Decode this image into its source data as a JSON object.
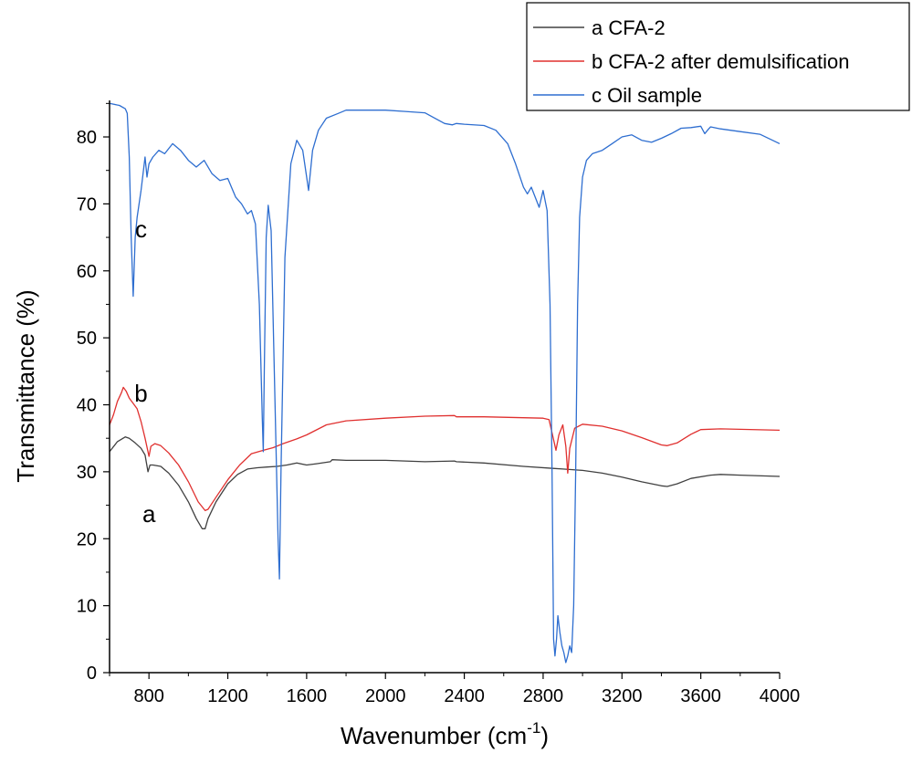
{
  "chart_data": {
    "type": "line",
    "xlabel": "Wavenumber (cm",
    "xlabel_sup": "-1",
    "xlabel_close": ")",
    "ylabel": "Transmittance (%)",
    "xlim": [
      600,
      4000
    ],
    "ylim": [
      0,
      86
    ],
    "x_ticks": [
      800,
      1200,
      1600,
      2000,
      2400,
      2800,
      3200,
      3600,
      4000
    ],
    "x_tick_labels": [
      "800",
      "1200",
      "1600",
      "2000",
      "2400",
      "2800",
      "3200",
      "3600",
      "4000"
    ],
    "y_ticks": [
      0,
      10,
      20,
      30,
      40,
      50,
      60,
      70,
      80
    ],
    "y_tick_labels": [
      "0",
      "10",
      "20",
      "30",
      "40",
      "50",
      "60",
      "70",
      "80"
    ],
    "grid": false,
    "legend_position": "top-right",
    "series": [
      {
        "name": "a CFA-2",
        "tag": "a",
        "color": "#404040",
        "x": [
          600,
          640,
          680,
          700,
          730,
          760,
          780,
          795,
          805,
          820,
          860,
          900,
          950,
          1000,
          1040,
          1070,
          1085,
          1100,
          1140,
          1200,
          1250,
          1300,
          1350,
          1400,
          1450,
          1500,
          1550,
          1600,
          1650,
          1720,
          1730,
          1800,
          2000,
          2200,
          2350,
          2360,
          2500,
          2700,
          2850,
          2900,
          3000,
          3100,
          3200,
          3300,
          3400,
          3430,
          3480,
          3550,
          3650,
          3700,
          3800,
          4000
        ],
        "y": [
          33,
          34.5,
          35.2,
          35,
          34.3,
          33.5,
          32.5,
          30,
          31,
          31,
          30.8,
          29.8,
          28,
          25.5,
          23,
          21.5,
          21.5,
          23,
          25.5,
          28.2,
          29.6,
          30.4,
          30.6,
          30.7,
          30.8,
          31,
          31.3,
          31,
          31.2,
          31.5,
          31.8,
          31.7,
          31.7,
          31.5,
          31.6,
          31.5,
          31.3,
          30.8,
          30.5,
          30.4,
          30.2,
          29.8,
          29.2,
          28.5,
          27.9,
          27.8,
          28.2,
          29,
          29.5,
          29.6,
          29.5,
          29.3
        ]
      },
      {
        "name": "b CFA-2 after demulsification",
        "tag": "b",
        "color": "#e0302f",
        "x": [
          600,
          620,
          640,
          660,
          670,
          685,
          700,
          720,
          740,
          760,
          780,
          800,
          810,
          830,
          860,
          900,
          950,
          1000,
          1050,
          1085,
          1100,
          1140,
          1200,
          1260,
          1320,
          1380,
          1430,
          1480,
          1550,
          1600,
          1700,
          1800,
          2000,
          2200,
          2350,
          2360,
          2500,
          2800,
          2830,
          2850,
          2865,
          2880,
          2900,
          2915,
          2925,
          2935,
          2960,
          3000,
          3100,
          3200,
          3300,
          3400,
          3430,
          3480,
          3550,
          3600,
          3700,
          4000
        ],
        "y": [
          37,
          38.5,
          40.5,
          41.8,
          42.6,
          42,
          41,
          40.2,
          39.4,
          37.5,
          35,
          32.3,
          33.8,
          34.2,
          33.9,
          32.8,
          31,
          28.5,
          25.5,
          24.2,
          24.4,
          26.2,
          28.8,
          31,
          32.7,
          33.2,
          33.6,
          34.2,
          34.9,
          35.5,
          37,
          37.6,
          38,
          38.3,
          38.4,
          38.2,
          38.2,
          38,
          37.8,
          35.2,
          33.2,
          35.5,
          37,
          33.8,
          29.8,
          33.5,
          36.5,
          37.1,
          36.8,
          36.1,
          35.1,
          34,
          33.9,
          34.3,
          35.6,
          36.3,
          36.4,
          36.2
        ]
      },
      {
        "name": "c Oil sample",
        "tag": "c",
        "color": "#2e6ed0",
        "x": [
          600,
          650,
          680,
          690,
          700,
          710,
          720,
          730,
          740,
          760,
          780,
          790,
          800,
          820,
          850,
          880,
          920,
          960,
          1000,
          1040,
          1080,
          1120,
          1160,
          1200,
          1240,
          1270,
          1300,
          1320,
          1340,
          1360,
          1375,
          1380,
          1385,
          1395,
          1405,
          1420,
          1440,
          1455,
          1462,
          1470,
          1490,
          1520,
          1550,
          1580,
          1600,
          1610,
          1630,
          1660,
          1700,
          1760,
          1800,
          1900,
          2000,
          2100,
          2200,
          2300,
          2340,
          2360,
          2400,
          2500,
          2560,
          2620,
          2660,
          2700,
          2720,
          2740,
          2760,
          2780,
          2800,
          2820,
          2835,
          2845,
          2853,
          2860,
          2868,
          2875,
          2885,
          2895,
          2905,
          2915,
          2925,
          2935,
          2945,
          2955,
          2965,
          2975,
          2985,
          3000,
          3020,
          3050,
          3100,
          3150,
          3200,
          3250,
          3300,
          3350,
          3400,
          3450,
          3500,
          3550,
          3600,
          3620,
          3640,
          3650,
          3700,
          3800,
          3900,
          4000
        ],
        "y": [
          85,
          84.7,
          84.2,
          83.5,
          77,
          65,
          56.2,
          65,
          68,
          72,
          77,
          74,
          76,
          77,
          78,
          77.5,
          79,
          78,
          76.5,
          75.5,
          76.5,
          74.5,
          73.5,
          73.8,
          71,
          70,
          68.5,
          69,
          67,
          55,
          38,
          33,
          45,
          65,
          69.8,
          66,
          40,
          20,
          14,
          30,
          62,
          76,
          79.5,
          78,
          74,
          72,
          78,
          81,
          82.8,
          83.5,
          84,
          84,
          84,
          83.8,
          83.6,
          82,
          81.8,
          82,
          81.9,
          81.7,
          81,
          79,
          76,
          72.5,
          71.5,
          72.5,
          71,
          69.5,
          72,
          69,
          55,
          30,
          5,
          2.5,
          5,
          8.5,
          6,
          4,
          3,
          1.5,
          2.5,
          4,
          3,
          10,
          30,
          55,
          68,
          74,
          76.5,
          77.5,
          78,
          79,
          80,
          80.3,
          79.5,
          79.2,
          79.8,
          80.5,
          81.3,
          81.4,
          81.6,
          80.5,
          81.2,
          81.5,
          81.2,
          80.8,
          80.4,
          79
        ]
      }
    ],
    "annotations": [
      {
        "text": "a",
        "x": 800,
        "y": 22.5
      },
      {
        "text": "b",
        "x": 760,
        "y": 40.5
      },
      {
        "text": "c",
        "x": 760,
        "y": 65
      }
    ]
  }
}
